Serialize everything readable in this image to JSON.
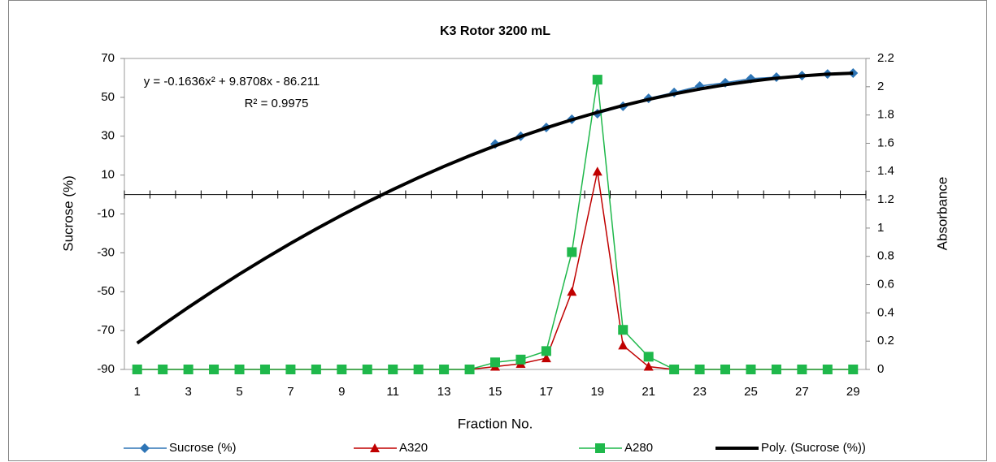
{
  "chart_data": {
    "type": "line",
    "title": "K3 Rotor 3200 mL",
    "x_label": "Fraction No.",
    "y_label": "Sucrose (%)",
    "y2_label": "Absorbance",
    "annotations": [
      "y = -0.1636x² + 9.8708x - 86.211",
      "R² = 0.9975"
    ],
    "categories": [
      "1",
      null,
      "3",
      null,
      "5",
      null,
      "7",
      null,
      "9",
      null,
      "11",
      null,
      "13",
      null,
      "15",
      null,
      "17",
      null,
      "19",
      null,
      "21",
      null,
      "23",
      null,
      "25",
      null,
      "27",
      null,
      "29"
    ],
    "ylim": [
      -90,
      70
    ],
    "yticks": [
      -90,
      -70,
      -50,
      -30,
      -10,
      10,
      30,
      50,
      70
    ],
    "y2lim": [
      0,
      2.2
    ],
    "y2ticks": [
      0,
      0.2,
      0.4,
      0.6,
      0.8,
      1,
      1.2,
      1.4,
      1.6,
      1.8,
      2,
      2.2
    ],
    "legend": "bottom",
    "series": [
      {
        "name": "Sucrose (%)",
        "color": "#2e75b6",
        "marker": "diamond",
        "axis": "y",
        "values": [
          null,
          null,
          null,
          null,
          null,
          null,
          null,
          null,
          null,
          null,
          null,
          null,
          null,
          null,
          26,
          30,
          34.5,
          38.7,
          41.6,
          45.4,
          49.5,
          52.5,
          55.8,
          57.5,
          59.6,
          60.4,
          61.2,
          62,
          62.5
        ]
      },
      {
        "name": "A320",
        "color": "#c00000",
        "marker": "triangle",
        "axis": "y2",
        "values": [
          0,
          0,
          0,
          0,
          0,
          0,
          0,
          0,
          0,
          0,
          0,
          0,
          0,
          0,
          0.02,
          0.04,
          0.08,
          0.55,
          1.4,
          0.17,
          0.02,
          0,
          0,
          0,
          0,
          0,
          0,
          0,
          0
        ]
      },
      {
        "name": "A280",
        "color": "#1fb84b",
        "marker": "square",
        "axis": "y2",
        "values": [
          0,
          0,
          0,
          0,
          0,
          0,
          0,
          0,
          0,
          0,
          0,
          0,
          0,
          0,
          0.05,
          0.07,
          0.13,
          0.83,
          2.05,
          0.28,
          0.09,
          0,
          0,
          0,
          0,
          0,
          0,
          0,
          0
        ]
      },
      {
        "name": "Poly. (Sucrose (%))",
        "color": "#000000",
        "marker": "none",
        "axis": "y",
        "values": [
          -76.5,
          -67.12,
          -58.07,
          -49.35,
          -40.95,
          -32.88,
          -25.13,
          -17.72,
          -10.63,
          -3.86,
          2.57,
          8.68,
          14.46,
          19.91,
          25.04,
          29.84,
          34.31,
          38.46,
          42.27,
          45.77,
          48.93,
          51.76,
          54.27,
          56.45,
          58.31,
          59.84,
          61.04,
          61.91,
          62.45
        ]
      }
    ]
  }
}
